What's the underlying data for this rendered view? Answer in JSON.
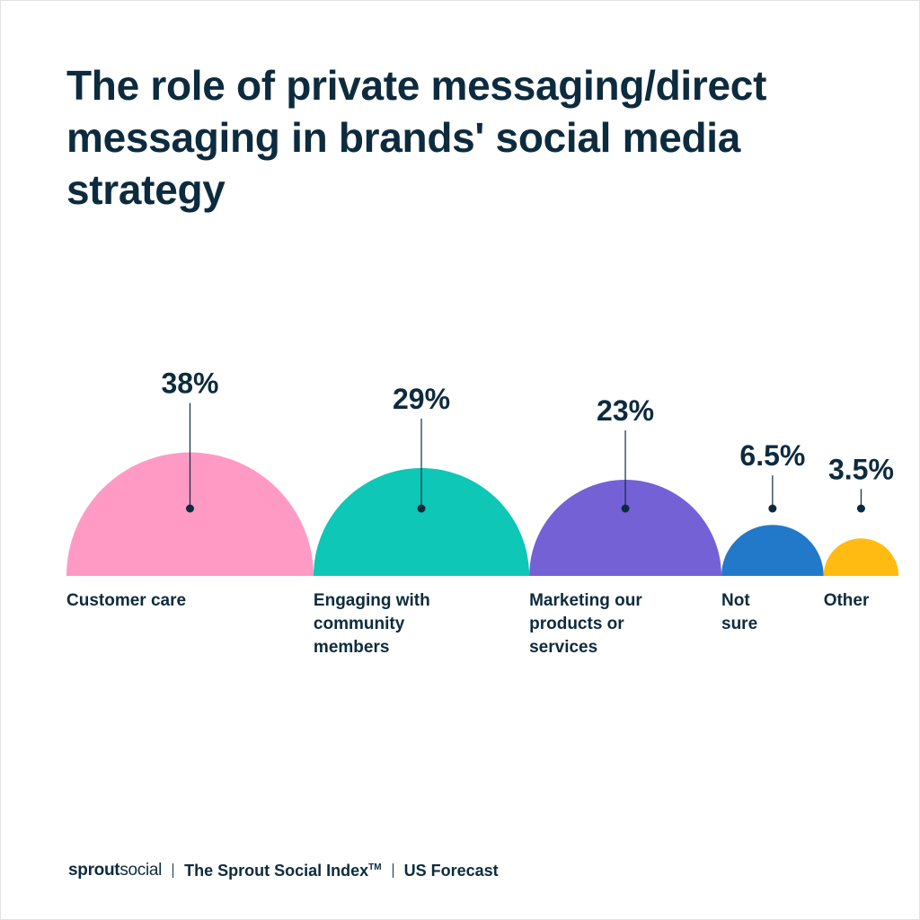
{
  "title": "The role of private messaging/direct messaging in brands' social media strategy",
  "chart_data": {
    "type": "semicircle",
    "unit": "%",
    "categories": [
      {
        "label_lines": [
          "Customer care"
        ],
        "value": 38,
        "value_label": "38%",
        "color": "#ff9ac5"
      },
      {
        "label_lines": [
          "Engaging with",
          "community",
          "members"
        ],
        "value": 29,
        "value_label": "29%",
        "color": "#0ec7b6"
      },
      {
        "label_lines": [
          "Marketing our",
          "products or",
          "services"
        ],
        "value": 23,
        "value_label": "23%",
        "color": "#7461d6"
      },
      {
        "label_lines": [
          "Not",
          "sure"
        ],
        "value": 6.5,
        "value_label": "6.5%",
        "color": "#2279c9"
      },
      {
        "label_lines": [
          "Other"
        ],
        "value": 3.5,
        "value_label": "3.5%",
        "color": "#ffbb12"
      }
    ]
  },
  "footer": {
    "brand_bold": "sprout",
    "brand_light": "social",
    "index": "The Sprout Social Index",
    "trademark": "TM",
    "report": "US Forecast"
  }
}
